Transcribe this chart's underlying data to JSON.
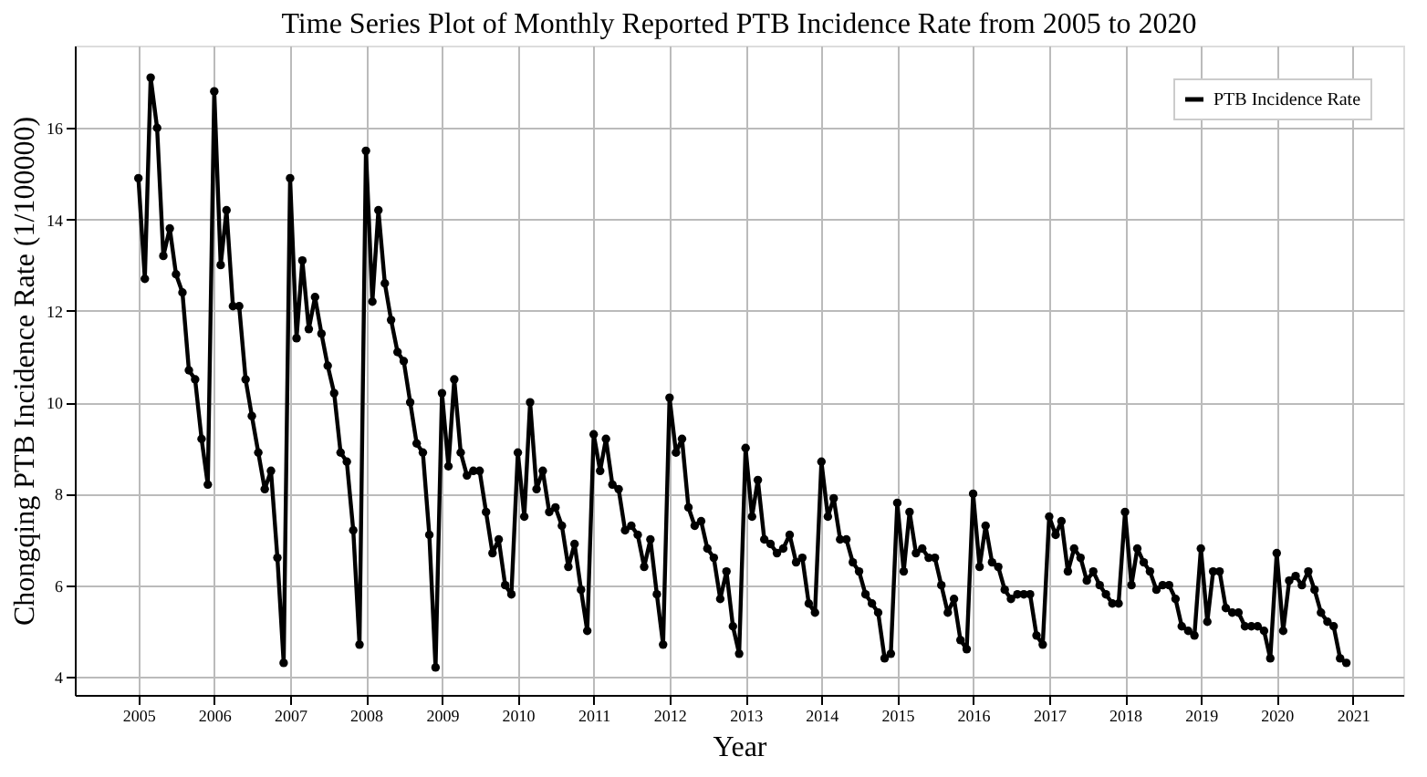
{
  "chart_data": {
    "type": "line",
    "title": "Time Series Plot of Monthly Reported PTB Incidence Rate from 2005 to 2020",
    "xlabel": "Year",
    "ylabel": "Chongqing PTB Incidence Rate (1/100000)",
    "x": [
      "2005-01",
      "2005-02",
      "2005-03",
      "2005-04",
      "2005-05",
      "2005-06",
      "2005-07",
      "2005-08",
      "2005-09",
      "2005-10",
      "2005-11",
      "2005-12",
      "2006-01",
      "2006-02",
      "2006-03",
      "2006-04",
      "2006-05",
      "2006-06",
      "2006-07",
      "2006-08",
      "2006-09",
      "2006-10",
      "2006-11",
      "2006-12",
      "2007-01",
      "2007-02",
      "2007-03",
      "2007-04",
      "2007-05",
      "2007-06",
      "2007-07",
      "2007-08",
      "2007-09",
      "2007-10",
      "2007-11",
      "2007-12",
      "2008-01",
      "2008-02",
      "2008-03",
      "2008-04",
      "2008-05",
      "2008-06",
      "2008-07",
      "2008-08",
      "2008-09",
      "2008-10",
      "2008-11",
      "2008-12",
      "2009-01",
      "2009-02",
      "2009-03",
      "2009-04",
      "2009-05",
      "2009-06",
      "2009-07",
      "2009-08",
      "2009-09",
      "2009-10",
      "2009-11",
      "2009-12",
      "2010-01",
      "2010-02",
      "2010-03",
      "2010-04",
      "2010-05",
      "2010-06",
      "2010-07",
      "2010-08",
      "2010-09",
      "2010-10",
      "2010-11",
      "2010-12",
      "2011-01",
      "2011-02",
      "2011-03",
      "2011-04",
      "2011-05",
      "2011-06",
      "2011-07",
      "2011-08",
      "2011-09",
      "2011-10",
      "2011-11",
      "2011-12",
      "2012-01",
      "2012-02",
      "2012-03",
      "2012-04",
      "2012-05",
      "2012-06",
      "2012-07",
      "2012-08",
      "2012-09",
      "2012-10",
      "2012-11",
      "2012-12",
      "2013-01",
      "2013-02",
      "2013-03",
      "2013-04",
      "2013-05",
      "2013-06",
      "2013-07",
      "2013-08",
      "2013-09",
      "2013-10",
      "2013-11",
      "2013-12",
      "2014-01",
      "2014-02",
      "2014-03",
      "2014-04",
      "2014-05",
      "2014-06",
      "2014-07",
      "2014-08",
      "2014-09",
      "2014-10",
      "2014-11",
      "2014-12",
      "2015-01",
      "2015-02",
      "2015-03",
      "2015-04",
      "2015-05",
      "2015-06",
      "2015-07",
      "2015-08",
      "2015-09",
      "2015-10",
      "2015-11",
      "2015-12",
      "2016-01",
      "2016-02",
      "2016-03",
      "2016-04",
      "2016-05",
      "2016-06",
      "2016-07",
      "2016-08",
      "2016-09",
      "2016-10",
      "2016-11",
      "2016-12",
      "2017-01",
      "2017-02",
      "2017-03",
      "2017-04",
      "2017-05",
      "2017-06",
      "2017-07",
      "2017-08",
      "2017-09",
      "2017-10",
      "2017-11",
      "2017-12",
      "2018-01",
      "2018-02",
      "2018-03",
      "2018-04",
      "2018-05",
      "2018-06",
      "2018-07",
      "2018-08",
      "2018-09",
      "2018-10",
      "2018-11",
      "2018-12",
      "2019-01",
      "2019-02",
      "2019-03",
      "2019-04",
      "2019-05",
      "2019-06",
      "2019-07",
      "2019-08",
      "2019-09",
      "2019-10",
      "2019-11",
      "2019-12",
      "2020-01",
      "2020-02",
      "2020-03",
      "2020-04",
      "2020-05",
      "2020-06",
      "2020-07",
      "2020-08",
      "2020-09",
      "2020-10",
      "2020-11",
      "2020-12"
    ],
    "series": [
      {
        "name": "PTB Incidence Rate",
        "color": "#000000",
        "values": [
          14.9,
          12.7,
          17.1,
          16.0,
          13.2,
          13.8,
          12.8,
          12.4,
          10.7,
          10.5,
          9.2,
          8.2,
          16.8,
          13.0,
          14.2,
          12.1,
          12.1,
          10.5,
          9.7,
          8.9,
          8.1,
          8.5,
          6.6,
          4.3,
          14.9,
          11.4,
          13.1,
          11.6,
          12.3,
          11.5,
          10.8,
          10.2,
          8.9,
          8.7,
          7.2,
          4.7,
          15.5,
          12.2,
          14.2,
          12.6,
          11.8,
          11.1,
          10.9,
          10.0,
          9.1,
          8.9,
          7.1,
          4.2,
          10.2,
          8.6,
          10.5,
          8.9,
          8.4,
          8.5,
          8.5,
          7.6,
          6.7,
          7.0,
          6.0,
          5.8,
          8.9,
          7.5,
          10.0,
          8.1,
          8.5,
          7.6,
          7.7,
          7.3,
          6.4,
          6.9,
          5.9,
          5.0,
          9.3,
          8.5,
          9.2,
          8.2,
          8.1,
          7.2,
          7.3,
          7.1,
          6.4,
          7.0,
          5.8,
          4.7,
          10.1,
          8.9,
          9.2,
          7.7,
          7.3,
          7.4,
          6.8,
          6.6,
          5.7,
          6.3,
          5.1,
          4.5,
          9.0,
          7.5,
          8.3,
          7.0,
          6.9,
          6.7,
          6.8,
          7.1,
          6.5,
          6.6,
          5.6,
          5.4,
          8.7,
          7.5,
          7.9,
          7.0,
          7.0,
          6.5,
          6.3,
          5.8,
          5.6,
          5.4,
          4.4,
          4.5,
          7.8,
          6.3,
          7.6,
          6.7,
          6.8,
          6.6,
          6.6,
          6.0,
          5.4,
          5.7,
          4.8,
          4.6,
          8.0,
          6.4,
          7.3,
          6.5,
          6.4,
          5.9,
          5.7,
          5.8,
          5.8,
          5.8,
          4.9,
          4.7,
          7.5,
          7.1,
          7.4,
          6.3,
          6.8,
          6.6,
          6.1,
          6.3,
          6.0,
          5.8,
          5.6,
          5.6,
          7.6,
          6.0,
          6.8,
          6.5,
          6.3,
          5.9,
          6.0,
          6.0,
          5.7,
          5.1,
          5.0,
          4.9,
          6.8,
          5.2,
          6.3,
          6.3,
          5.5,
          5.4,
          5.4,
          5.1,
          5.1,
          5.1,
          5.0,
          4.4,
          6.7,
          5.0,
          6.1,
          6.2,
          6.0,
          6.3,
          5.9,
          5.4,
          5.2,
          5.1,
          4.4,
          4.3
        ]
      }
    ],
    "xlim": [
      "2004-03",
      "2021-09"
    ],
    "xticks": [
      "2005",
      "2006",
      "2007",
      "2008",
      "2009",
      "2010",
      "2011",
      "2012",
      "2013",
      "2014",
      "2015",
      "2016",
      "2017",
      "2018",
      "2019",
      "2020",
      "2021"
    ],
    "ylim": [
      3.6,
      17.8
    ],
    "yticks": [
      4,
      6,
      8,
      10,
      12,
      14,
      16
    ],
    "grid": true,
    "legend": "top right",
    "marker": "circle",
    "line_style": "solid"
  }
}
